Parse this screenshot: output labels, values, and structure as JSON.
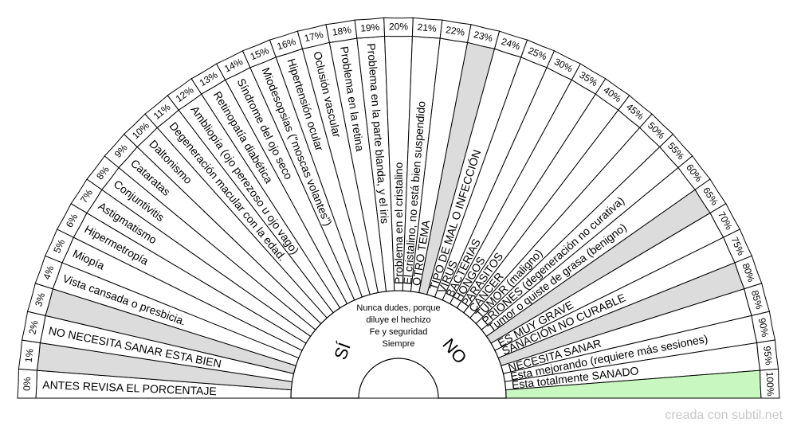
{
  "center_text": [
    "Nunca dudes, porque",
    "diluye el hechizo",
    "Fe y seguridad",
    "Siempre"
  ],
  "yes_label": "SÍ",
  "no_label": "NO",
  "credit": "creada con subtil.net",
  "highlight_color": "#c8f7c0",
  "shade_color": "#dcdcdc",
  "sectors": [
    {
      "label": "ANTES REVISA EL PORCENTAJE",
      "percent": "0%",
      "shade": false
    },
    {
      "label": "",
      "percent": "1%",
      "shade": true
    },
    {
      "label": "NO NECESITA SANAR ESTA BIEN",
      "percent": "2%",
      "shade": false
    },
    {
      "label": "",
      "percent": "3%",
      "shade": true
    },
    {
      "label": "Vista cansada o presbicia.",
      "percent": "4%",
      "shade": false
    },
    {
      "label": "Miopía",
      "percent": "5%",
      "shade": false
    },
    {
      "label": "Hipermetropía",
      "percent": "6%",
      "shade": false
    },
    {
      "label": "Astigmatismo",
      "percent": "7%",
      "shade": false
    },
    {
      "label": "Conjuntivitis",
      "percent": "8%",
      "shade": false
    },
    {
      "label": "Cataratas",
      "percent": "9%",
      "shade": false
    },
    {
      "label": "Daltonismo",
      "percent": "10%",
      "shade": false
    },
    {
      "label": "Degeneración macular con la edad.",
      "percent": "11%",
      "shade": false
    },
    {
      "label": "Ambliopía (ojo perezoso u ojo vago)",
      "percent": "12%",
      "shade": false
    },
    {
      "label": "Retinopatía diabética",
      "percent": "13%",
      "shade": false
    },
    {
      "label": "Síndrome del ojo seco",
      "percent": "14%",
      "shade": false
    },
    {
      "label": "Miodesopsias (\"moscas volantes\")",
      "percent": "15%",
      "shade": false
    },
    {
      "label": "Hipertensión ocular",
      "percent": "16%",
      "shade": false
    },
    {
      "label": "Oclusión vascular",
      "percent": "17%",
      "shade": false
    },
    {
      "label": "Problema en la retina",
      "percent": "18%",
      "shade": false
    },
    {
      "label": "Problema en la parte blanda, y el iris",
      "percent": "19%",
      "shade": false
    },
    {
      "label": "Problema en el cristalino",
      "percent": "20%",
      "shade": false
    },
    {
      "label": "El cristalino, no está bien suspendido",
      "percent": "21%",
      "shade": false
    },
    {
      "label": "OTRO TEMA",
      "percent": "22%",
      "shade": false
    },
    {
      "label": "",
      "percent": "23%",
      "shade": true
    },
    {
      "label": "TIPO DE MAL O INFECCIÓN",
      "percent": "24%",
      "shade": false
    },
    {
      "label": "VIRUS",
      "percent": "25%",
      "shade": false
    },
    {
      "label": "BACTERIAS",
      "percent": "30%",
      "shade": false
    },
    {
      "label": "HONGOS",
      "percent": "35%",
      "shade": false
    },
    {
      "label": "PARÁSITOS",
      "percent": "40%",
      "shade": false
    },
    {
      "label": "CÁNCER",
      "percent": "45%",
      "shade": false
    },
    {
      "label": "TUMOR (maligno)",
      "percent": "50%",
      "shade": false
    },
    {
      "label": "PRIONES (degeneración no curativa)",
      "percent": "55%",
      "shade": false
    },
    {
      "label": "Tumor o quiste de grasa (benigno)",
      "percent": "60%",
      "shade": false
    },
    {
      "label": "",
      "percent": "65%",
      "shade": true
    },
    {
      "label": "ES  MUY GRAVE",
      "percent": "70%",
      "shade": false
    },
    {
      "label": "SANACIÓN NO CURABLE",
      "percent": "75%",
      "shade": false
    },
    {
      "label": "",
      "percent": "80%",
      "shade": true
    },
    {
      "label": "NECESITA SANAR",
      "percent": "85%",
      "shade": false
    },
    {
      "label": "Esta mejorando (requiere más sesiones)",
      "percent": "90%",
      "shade": false
    },
    {
      "label": "Esta totalmente SANADO",
      "percent": "95%",
      "shade": false
    },
    {
      "label": "",
      "percent": "100%",
      "shade": false,
      "highlight": true
    }
  ]
}
